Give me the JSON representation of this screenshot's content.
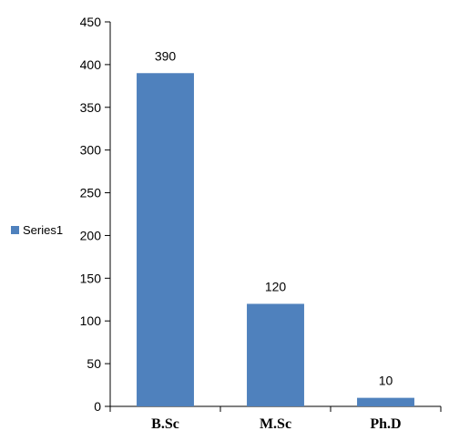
{
  "chart_data": {
    "type": "bar",
    "title": "",
    "xlabel": "",
    "ylabel": "",
    "categories": [
      "B.Sc",
      "M.Sc",
      "Ph.D"
    ],
    "series": [
      {
        "name": "Series1",
        "values": [
          390,
          120,
          10
        ],
        "color": "#4f81bd"
      }
    ],
    "data_labels": [
      "390",
      "120",
      "10"
    ],
    "ylim": [
      0,
      450
    ],
    "yticks": [
      0,
      50,
      100,
      150,
      200,
      250,
      300,
      350,
      400,
      450
    ],
    "grid": false,
    "legend": {
      "placement": "left",
      "entries": [
        "Series1"
      ]
    }
  }
}
